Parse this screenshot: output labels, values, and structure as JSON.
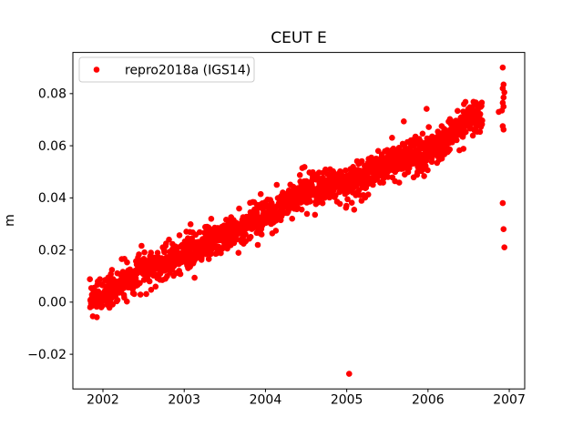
{
  "chart_data": {
    "type": "scatter",
    "title": "CEUT E",
    "xlabel": "",
    "ylabel": "m",
    "grid": false,
    "legend_position": "upper left",
    "xlim": [
      2001.63,
      2007.19
    ],
    "ylim": [
      -0.0333,
      0.0958
    ],
    "x_ticks": [
      2002,
      2003,
      2004,
      2005,
      2006,
      2007
    ],
    "x_tick_labels": [
      "2002",
      "2003",
      "2004",
      "2005",
      "2006",
      "2007"
    ],
    "y_ticks": [
      -0.02,
      0.0,
      0.02,
      0.04,
      0.06,
      0.08
    ],
    "y_tick_labels": [
      "−0.02",
      "0.00",
      "0.02",
      "0.04",
      "0.06",
      "0.08"
    ],
    "series": [
      {
        "name": "repro2018a (IGS14)",
        "color": "#ff0000",
        "marker": "dot",
        "marker_radius_px": 3.3,
        "sampling_per_year": 365,
        "span": [
          2001.84,
          2006.67
        ],
        "noise_sd": 0.003,
        "trend_anchors": [
          [
            2001.84,
            0.0005
          ],
          [
            2002.2,
            0.006
          ],
          [
            2002.5,
            0.0125
          ],
          [
            2002.8,
            0.016
          ],
          [
            2003.0,
            0.018
          ],
          [
            2003.3,
            0.023
          ],
          [
            2003.6,
            0.0275
          ],
          [
            2004.0,
            0.033
          ],
          [
            2004.3,
            0.039
          ],
          [
            2004.5,
            0.042
          ],
          [
            2004.8,
            0.0448
          ],
          [
            2005.0,
            0.046
          ],
          [
            2005.3,
            0.0495
          ],
          [
            2005.6,
            0.054
          ],
          [
            2005.8,
            0.056
          ],
          [
            2006.0,
            0.058
          ],
          [
            2006.2,
            0.0615
          ],
          [
            2006.4,
            0.0675
          ],
          [
            2006.55,
            0.0715
          ],
          [
            2006.67,
            0.072
          ]
        ],
        "outliers": [
          [
            2005.03,
            -0.0275
          ],
          [
            2006.87,
            0.073
          ],
          [
            2006.92,
            0.09
          ],
          [
            2006.93,
            0.0835
          ],
          [
            2006.92,
            0.082
          ],
          [
            2006.94,
            0.0805
          ],
          [
            2006.93,
            0.0785
          ],
          [
            2006.92,
            0.0765
          ],
          [
            2006.93,
            0.075
          ],
          [
            2006.91,
            0.0735
          ],
          [
            2006.92,
            0.0675
          ],
          [
            2006.93,
            0.0662
          ],
          [
            2006.92,
            0.038
          ],
          [
            2006.93,
            0.028
          ],
          [
            2006.94,
            0.021
          ]
        ]
      }
    ]
  }
}
